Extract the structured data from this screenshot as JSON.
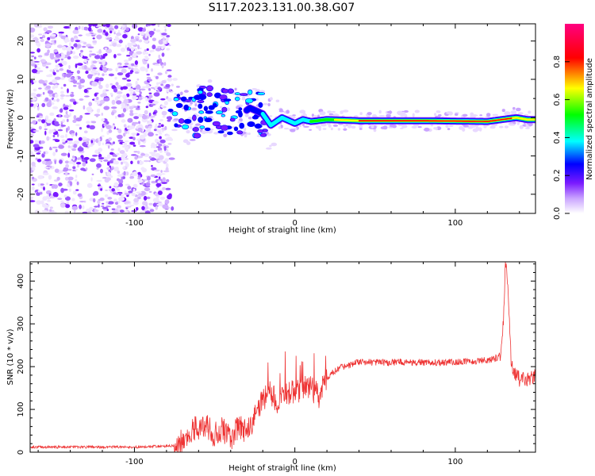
{
  "title": "S117.2023.131.00.38.G07",
  "chart_data": [
    {
      "type": "heatmap",
      "xlabel": "Height of straight line (km)",
      "ylabel": "Frequency (Hz)",
      "xlim": [
        -165,
        150
      ],
      "ylim": [
        -25,
        24.5
      ],
      "x_ticks": [
        -100,
        0,
        100
      ],
      "y_ticks": [
        -20,
        -10,
        0,
        10,
        20
      ],
      "colorbar": {
        "label": "Normalized spectral amplitude",
        "range": [
          0,
          1
        ],
        "ticks": [
          0.0,
          0.2,
          0.4,
          0.6,
          0.8
        ],
        "colormap": [
          "#ffffff",
          "#b38cff",
          "#6a00ff",
          "#0000ff",
          "#00ffff",
          "#00ff00",
          "#ffff00",
          "#ff0000",
          "#ff0080"
        ]
      },
      "noise_region_x": [
        -165,
        -78
      ],
      "ridge": [
        {
          "x": -75,
          "y": 2.0
        },
        {
          "x": -65,
          "y": 0.0
        },
        {
          "x": -55,
          "y": 3.0
        },
        {
          "x": -45,
          "y": 2.0
        },
        {
          "x": -35,
          "y": 0.5
        },
        {
          "x": -28,
          "y": 2.5
        },
        {
          "x": -20,
          "y": 1.0
        },
        {
          "x": -15,
          "y": -2.0
        },
        {
          "x": -8,
          "y": 0.0
        },
        {
          "x": 0,
          "y": -1.5
        },
        {
          "x": 5,
          "y": -0.5
        },
        {
          "x": 10,
          "y": -1.0
        },
        {
          "x": 20,
          "y": -0.5
        },
        {
          "x": 40,
          "y": -0.8
        },
        {
          "x": 80,
          "y": -0.8
        },
        {
          "x": 120,
          "y": -1.0
        },
        {
          "x": 138,
          "y": 0.0
        },
        {
          "x": 145,
          "y": -0.5
        }
      ]
    },
    {
      "type": "line",
      "xlabel": "Height of straight line (km)",
      "ylabel": "SNR (10 * v/v)",
      "xlim": [
        -165,
        150
      ],
      "ylim": [
        0,
        445
      ],
      "x_ticks": [
        -100,
        0,
        100
      ],
      "y_ticks": [
        0,
        100,
        200,
        300,
        400
      ],
      "color": "#ee3333",
      "series": [
        {
          "x": [
            -165,
            -140,
            -120,
            -100,
            -85,
            -75,
            -68,
            -62,
            -55,
            -50,
            -45,
            -40,
            -35,
            -30,
            -25,
            -20,
            -15,
            -10,
            -5,
            0,
            5,
            10,
            15,
            20,
            25,
            30,
            40,
            50,
            60,
            70,
            80,
            90,
            100,
            110,
            120,
            125,
            128,
            130,
            131,
            132,
            133,
            135,
            140,
            145,
            150
          ],
          "y": [
            12,
            12,
            12,
            12,
            14,
            15,
            30,
            55,
            60,
            40,
            55,
            30,
            60,
            50,
            80,
            120,
            140,
            110,
            140,
            140,
            150,
            150,
            130,
            175,
            190,
            200,
            210,
            210,
            210,
            210,
            210,
            210,
            210,
            213,
            215,
            220,
            225,
            300,
            420,
            440,
            380,
            200,
            170,
            170,
            175
          ]
        }
      ]
    }
  ]
}
